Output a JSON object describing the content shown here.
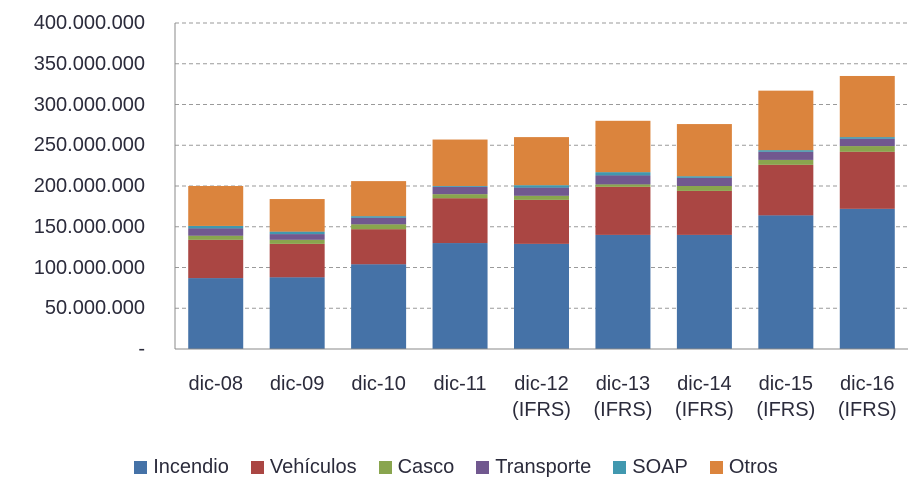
{
  "chart_data": {
    "type": "stacked_bar",
    "categories": [
      "dic-08",
      "dic-09",
      "dic-10",
      "dic-11",
      "dic-12 (IFRS)",
      "dic-13 (IFRS)",
      "dic-14 (IFRS)",
      "dic-15 (IFRS)",
      "dic-16 (IFRS)"
    ],
    "series": [
      {
        "name": "Incendio",
        "color": "#4572a7",
        "values": [
          87000000,
          88000000,
          104000000,
          130000000,
          129000000,
          140000000,
          140000000,
          164000000,
          172000000
        ]
      },
      {
        "name": "Vehículos",
        "color": "#aa4643",
        "values": [
          47000000,
          41000000,
          43000000,
          55000000,
          54000000,
          59000000,
          54000000,
          62000000,
          70000000
        ]
      },
      {
        "name": "Casco",
        "color": "#89a54e",
        "values": [
          5000000,
          5000000,
          6000000,
          5000000,
          5000000,
          3000000,
          6000000,
          6000000,
          7000000
        ]
      },
      {
        "name": "Transporte",
        "color": "#71588f",
        "values": [
          9000000,
          7000000,
          8000000,
          9000000,
          10000000,
          11000000,
          10000000,
          10000000,
          9000000
        ]
      },
      {
        "name": "SOAP",
        "color": "#4198af",
        "values": [
          3000000,
          3000000,
          2000000,
          1000000,
          3000000,
          4000000,
          2000000,
          2000000,
          2000000
        ]
      },
      {
        "name": "Otros",
        "color": "#db843d",
        "values": [
          49000000,
          40000000,
          43000000,
          57000000,
          59000000,
          63000000,
          64000000,
          73000000,
          75000000
        ]
      }
    ],
    "ylim": [
      0,
      400000000
    ],
    "yticks": [
      {
        "value": 0,
        "label": "-"
      },
      {
        "value": 50000000,
        "label": "50.000.000"
      },
      {
        "value": 100000000,
        "label": "100.000.000"
      },
      {
        "value": 150000000,
        "label": "150.000.000"
      },
      {
        "value": 200000000,
        "label": "200.000.000"
      },
      {
        "value": 250000000,
        "label": "250.000.000"
      },
      {
        "value": 300000000,
        "label": "300.000.000"
      },
      {
        "value": 350000000,
        "label": "350.000.000"
      },
      {
        "value": 400000000,
        "label": "400.000.000"
      }
    ],
    "grid": true,
    "legend": "bottom"
  }
}
